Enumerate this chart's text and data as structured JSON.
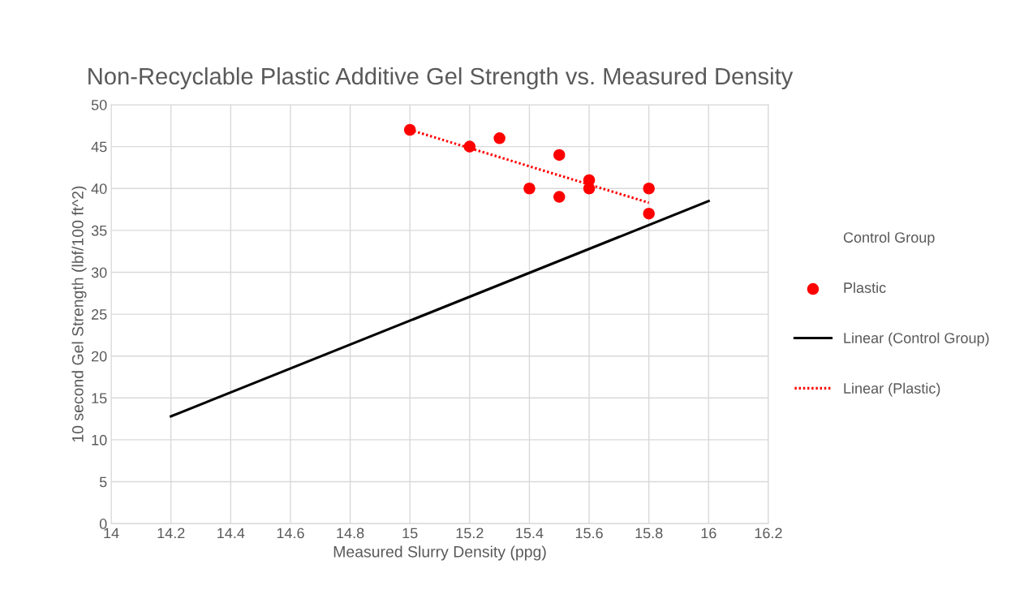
{
  "chart_data": {
    "type": "scatter",
    "title": "Non-Recyclable Plastic Additive Gel Strength vs. Measured Density",
    "xlabel": "Measured Slurry Density (ppg)",
    "ylabel": "10 second Gel Strength (lbf/100 ft^2)",
    "xlim": [
      14,
      16.2
    ],
    "xticks": [
      14,
      14.2,
      14.4,
      14.6,
      14.8,
      15,
      15.2,
      15.4,
      15.6,
      15.8,
      16,
      16.2
    ],
    "ylim": [
      0,
      50
    ],
    "yticks": [
      0,
      5,
      10,
      15,
      20,
      25,
      30,
      35,
      40,
      45,
      50
    ],
    "grid": true,
    "legend": "right",
    "series": [
      {
        "name": "Control Group",
        "marker": "none"
      },
      {
        "name": "Plastic",
        "marker": "circle",
        "color": "#ff0000",
        "x": [
          15,
          15.2,
          15.3,
          15.4,
          15.5,
          15.5,
          15.6,
          15.6,
          15.8,
          15.8
        ],
        "values": [
          47,
          45,
          46,
          40,
          44,
          39,
          41,
          40,
          40,
          37
        ]
      },
      {
        "name": "Linear (Control Group)",
        "type": "line",
        "line_style": "solid",
        "color": "#000000",
        "x": [
          14.2,
          16
        ],
        "values": [
          12.8,
          38.5
        ]
      },
      {
        "name": "Linear (Plastic)",
        "type": "line",
        "line_style": "dotted",
        "color": "#ff0000",
        "x": [
          15,
          15.8
        ],
        "values": [
          47,
          38.3
        ]
      }
    ]
  }
}
